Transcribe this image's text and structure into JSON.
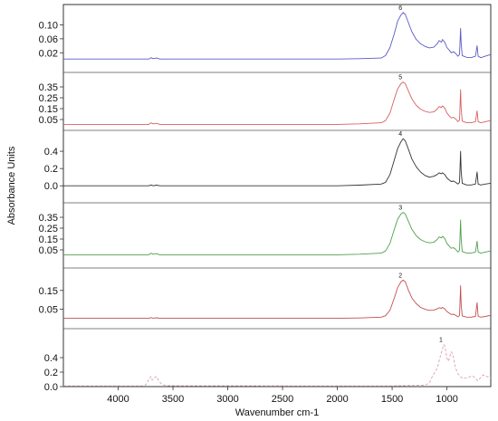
{
  "chart_data": {
    "type": "line",
    "title": "",
    "xlabel": "Wavenumber cm-1",
    "ylabel": "Absorbance Units",
    "xlim": [
      4500,
      600
    ],
    "x_ticks": [
      4000,
      3500,
      3000,
      2500,
      2000,
      1500,
      1000
    ],
    "grid": false,
    "legend": "none",
    "panels": [
      {
        "name": "6",
        "color": "#5a5ac8",
        "ylim": [
          0.0,
          0.14
        ],
        "y_ticks": [
          "0.10",
          "0.06",
          "0.02"
        ],
        "y_tick_values": [
          0.1,
          0.06,
          0.02
        ],
        "points": [
          [
            4500,
            0.002
          ],
          [
            3720,
            0.002
          ],
          [
            3700,
            0.006
          ],
          [
            3680,
            0.003
          ],
          [
            3650,
            0.005
          ],
          [
            3620,
            0.002
          ],
          [
            2000,
            0.002
          ],
          [
            1800,
            0.003
          ],
          [
            1600,
            0.005
          ],
          [
            1560,
            0.012
          ],
          [
            1520,
            0.035
          ],
          [
            1480,
            0.075
          ],
          [
            1450,
            0.11
          ],
          [
            1420,
            0.128
          ],
          [
            1400,
            0.135
          ],
          [
            1380,
            0.13
          ],
          [
            1350,
            0.105
          ],
          [
            1320,
            0.08
          ],
          [
            1280,
            0.058
          ],
          [
            1240,
            0.046
          ],
          [
            1200,
            0.038
          ],
          [
            1160,
            0.034
          ],
          [
            1120,
            0.036
          ],
          [
            1090,
            0.045
          ],
          [
            1070,
            0.055
          ],
          [
            1050,
            0.05
          ],
          [
            1040,
            0.058
          ],
          [
            1020,
            0.05
          ],
          [
            1000,
            0.035
          ],
          [
            980,
            0.028
          ],
          [
            960,
            0.02
          ],
          [
            940,
            0.023
          ],
          [
            920,
            0.018
          ],
          [
            900,
            0.01
          ],
          [
            885,
            0.015
          ],
          [
            875,
            0.09
          ],
          [
            870,
            0.048
          ],
          [
            860,
            0.012
          ],
          [
            820,
            0.007
          ],
          [
            780,
            0.006
          ],
          [
            740,
            0.01
          ],
          [
            725,
            0.04
          ],
          [
            715,
            0.01
          ],
          [
            690,
            0.006
          ],
          [
            650,
            0.01
          ],
          [
            600,
            0.015
          ]
        ]
      },
      {
        "name": "5",
        "color": "#d86060",
        "ylim": [
          0.0,
          0.45
        ],
        "y_ticks": [
          "0.35",
          "0.25",
          "0.15",
          "0.05"
        ],
        "y_tick_values": [
          0.35,
          0.25,
          0.15,
          0.05
        ],
        "points": [
          [
            4500,
            0.005
          ],
          [
            3720,
            0.005
          ],
          [
            3700,
            0.02
          ],
          [
            3680,
            0.01
          ],
          [
            3650,
            0.015
          ],
          [
            3620,
            0.005
          ],
          [
            2000,
            0.005
          ],
          [
            1800,
            0.01
          ],
          [
            1600,
            0.02
          ],
          [
            1560,
            0.04
          ],
          [
            1520,
            0.11
          ],
          [
            1480,
            0.24
          ],
          [
            1450,
            0.33
          ],
          [
            1420,
            0.38
          ],
          [
            1400,
            0.395
          ],
          [
            1380,
            0.38
          ],
          [
            1350,
            0.31
          ],
          [
            1320,
            0.24
          ],
          [
            1280,
            0.18
          ],
          [
            1240,
            0.145
          ],
          [
            1200,
            0.125
          ],
          [
            1160,
            0.115
          ],
          [
            1120,
            0.12
          ],
          [
            1090,
            0.145
          ],
          [
            1070,
            0.17
          ],
          [
            1050,
            0.16
          ],
          [
            1040,
            0.175
          ],
          [
            1020,
            0.155
          ],
          [
            1000,
            0.11
          ],
          [
            980,
            0.085
          ],
          [
            960,
            0.065
          ],
          [
            940,
            0.07
          ],
          [
            920,
            0.055
          ],
          [
            900,
            0.03
          ],
          [
            885,
            0.045
          ],
          [
            875,
            0.325
          ],
          [
            870,
            0.15
          ],
          [
            860,
            0.035
          ],
          [
            820,
            0.02
          ],
          [
            780,
            0.02
          ],
          [
            740,
            0.03
          ],
          [
            725,
            0.13
          ],
          [
            715,
            0.03
          ],
          [
            690,
            0.02
          ],
          [
            650,
            0.03
          ],
          [
            600,
            0.04
          ]
        ]
      },
      {
        "name": "4",
        "color": "#333333",
        "ylim": [
          -0.05,
          0.6
        ],
        "y_ticks": [
          "0.4",
          "0.2",
          "0.0"
        ],
        "y_tick_values": [
          0.4,
          0.2,
          0.0
        ],
        "points": [
          [
            4500,
            0.0
          ],
          [
            3720,
            0.0
          ],
          [
            3700,
            0.01
          ],
          [
            3680,
            0.0
          ],
          [
            3650,
            0.008
          ],
          [
            3620,
            0.0
          ],
          [
            2000,
            0.0
          ],
          [
            1800,
            0.008
          ],
          [
            1600,
            0.02
          ],
          [
            1560,
            0.04
          ],
          [
            1520,
            0.13
          ],
          [
            1480,
            0.3
          ],
          [
            1450,
            0.43
          ],
          [
            1420,
            0.51
          ],
          [
            1400,
            0.545
          ],
          [
            1380,
            0.52
          ],
          [
            1350,
            0.42
          ],
          [
            1320,
            0.31
          ],
          [
            1280,
            0.22
          ],
          [
            1240,
            0.16
          ],
          [
            1200,
            0.12
          ],
          [
            1160,
            0.1
          ],
          [
            1120,
            0.11
          ],
          [
            1090,
            0.13
          ],
          [
            1070,
            0.15
          ],
          [
            1050,
            0.14
          ],
          [
            1040,
            0.15
          ],
          [
            1020,
            0.13
          ],
          [
            1000,
            0.09
          ],
          [
            980,
            0.07
          ],
          [
            960,
            0.05
          ],
          [
            940,
            0.055
          ],
          [
            920,
            0.04
          ],
          [
            900,
            0.02
          ],
          [
            885,
            0.04
          ],
          [
            875,
            0.4
          ],
          [
            870,
            0.17
          ],
          [
            860,
            0.03
          ],
          [
            820,
            0.01
          ],
          [
            780,
            0.01
          ],
          [
            740,
            0.02
          ],
          [
            725,
            0.16
          ],
          [
            715,
            0.02
          ],
          [
            690,
            0.01
          ],
          [
            650,
            0.02
          ],
          [
            600,
            0.03
          ]
        ]
      },
      {
        "name": "3",
        "color": "#50a050",
        "ylim": [
          0.0,
          0.45
        ],
        "y_ticks": [
          "0.35",
          "0.25",
          "0.15",
          "0.05"
        ],
        "y_tick_values": [
          0.35,
          0.25,
          0.15,
          0.05
        ],
        "points": [
          [
            4500,
            0.005
          ],
          [
            3720,
            0.005
          ],
          [
            3700,
            0.02
          ],
          [
            3680,
            0.01
          ],
          [
            3650,
            0.015
          ],
          [
            3620,
            0.005
          ],
          [
            2000,
            0.005
          ],
          [
            1800,
            0.01
          ],
          [
            1600,
            0.02
          ],
          [
            1560,
            0.04
          ],
          [
            1520,
            0.11
          ],
          [
            1480,
            0.24
          ],
          [
            1450,
            0.33
          ],
          [
            1420,
            0.38
          ],
          [
            1400,
            0.395
          ],
          [
            1380,
            0.38
          ],
          [
            1350,
            0.31
          ],
          [
            1320,
            0.24
          ],
          [
            1280,
            0.18
          ],
          [
            1240,
            0.145
          ],
          [
            1200,
            0.125
          ],
          [
            1160,
            0.115
          ],
          [
            1120,
            0.12
          ],
          [
            1090,
            0.145
          ],
          [
            1070,
            0.17
          ],
          [
            1050,
            0.16
          ],
          [
            1040,
            0.175
          ],
          [
            1020,
            0.155
          ],
          [
            1000,
            0.11
          ],
          [
            980,
            0.085
          ],
          [
            960,
            0.065
          ],
          [
            940,
            0.07
          ],
          [
            920,
            0.055
          ],
          [
            900,
            0.03
          ],
          [
            885,
            0.045
          ],
          [
            875,
            0.325
          ],
          [
            870,
            0.15
          ],
          [
            860,
            0.035
          ],
          [
            820,
            0.02
          ],
          [
            780,
            0.02
          ],
          [
            740,
            0.03
          ],
          [
            725,
            0.13
          ],
          [
            715,
            0.03
          ],
          [
            690,
            0.02
          ],
          [
            650,
            0.03
          ],
          [
            600,
            0.04
          ]
        ]
      },
      {
        "name": "2",
        "color": "#c05050",
        "ylim": [
          0.0,
          0.25
        ],
        "y_ticks": [
          "0.15",
          "0.05"
        ],
        "y_tick_values": [
          0.15,
          0.05
        ],
        "points": [
          [
            4500,
            0.002
          ],
          [
            3720,
            0.002
          ],
          [
            3700,
            0.006
          ],
          [
            3680,
            0.003
          ],
          [
            3650,
            0.005
          ],
          [
            3620,
            0.002
          ],
          [
            2000,
            0.002
          ],
          [
            1800,
            0.004
          ],
          [
            1600,
            0.008
          ],
          [
            1560,
            0.016
          ],
          [
            1520,
            0.045
          ],
          [
            1480,
            0.11
          ],
          [
            1450,
            0.165
          ],
          [
            1420,
            0.195
          ],
          [
            1400,
            0.205
          ],
          [
            1380,
            0.195
          ],
          [
            1350,
            0.15
          ],
          [
            1320,
            0.11
          ],
          [
            1280,
            0.08
          ],
          [
            1240,
            0.06
          ],
          [
            1200,
            0.05
          ],
          [
            1160,
            0.044
          ],
          [
            1120,
            0.045
          ],
          [
            1090,
            0.052
          ],
          [
            1070,
            0.058
          ],
          [
            1050,
            0.055
          ],
          [
            1040,
            0.06
          ],
          [
            1020,
            0.052
          ],
          [
            1000,
            0.038
          ],
          [
            980,
            0.03
          ],
          [
            960,
            0.022
          ],
          [
            940,
            0.024
          ],
          [
            920,
            0.018
          ],
          [
            900,
            0.01
          ],
          [
            885,
            0.018
          ],
          [
            875,
            0.175
          ],
          [
            870,
            0.075
          ],
          [
            860,
            0.015
          ],
          [
            820,
            0.008
          ],
          [
            780,
            0.008
          ],
          [
            740,
            0.012
          ],
          [
            725,
            0.085
          ],
          [
            715,
            0.012
          ],
          [
            690,
            0.008
          ],
          [
            650,
            0.012
          ],
          [
            600,
            0.018
          ]
        ]
      },
      {
        "name": "1",
        "color": "#d8a0b0",
        "ylim": [
          0.0,
          0.75
        ],
        "y_ticks": [
          "0.4",
          "0.2",
          "0.0"
        ],
        "y_tick_values": [
          0.4,
          0.2,
          0.0
        ],
        "points": [
          [
            4500,
            0.01
          ],
          [
            3760,
            0.01
          ],
          [
            3740,
            0.04
          ],
          [
            3720,
            0.1
          ],
          [
            3700,
            0.14
          ],
          [
            3690,
            0.09
          ],
          [
            3670,
            0.12
          ],
          [
            3650,
            0.14
          ],
          [
            3630,
            0.08
          ],
          [
            3600,
            0.03
          ],
          [
            3560,
            0.012
          ],
          [
            2000,
            0.01
          ],
          [
            1500,
            0.01
          ],
          [
            1200,
            0.02
          ],
          [
            1160,
            0.05
          ],
          [
            1130,
            0.15
          ],
          [
            1100,
            0.22
          ],
          [
            1080,
            0.3
          ],
          [
            1060,
            0.42
          ],
          [
            1040,
            0.52
          ],
          [
            1030,
            0.58
          ],
          [
            1020,
            0.56
          ],
          [
            1010,
            0.48
          ],
          [
            1000,
            0.4
          ],
          [
            990,
            0.35
          ],
          [
            980,
            0.38
          ],
          [
            960,
            0.48
          ],
          [
            945,
            0.44
          ],
          [
            935,
            0.36
          ],
          [
            920,
            0.25
          ],
          [
            900,
            0.18
          ],
          [
            880,
            0.14
          ],
          [
            850,
            0.11
          ],
          [
            800,
            0.13
          ],
          [
            770,
            0.15
          ],
          [
            740,
            0.12
          ],
          [
            720,
            0.08
          ],
          [
            700,
            0.11
          ],
          [
            670,
            0.16
          ],
          [
            640,
            0.14
          ],
          [
            600,
            0.12
          ]
        ]
      }
    ]
  }
}
